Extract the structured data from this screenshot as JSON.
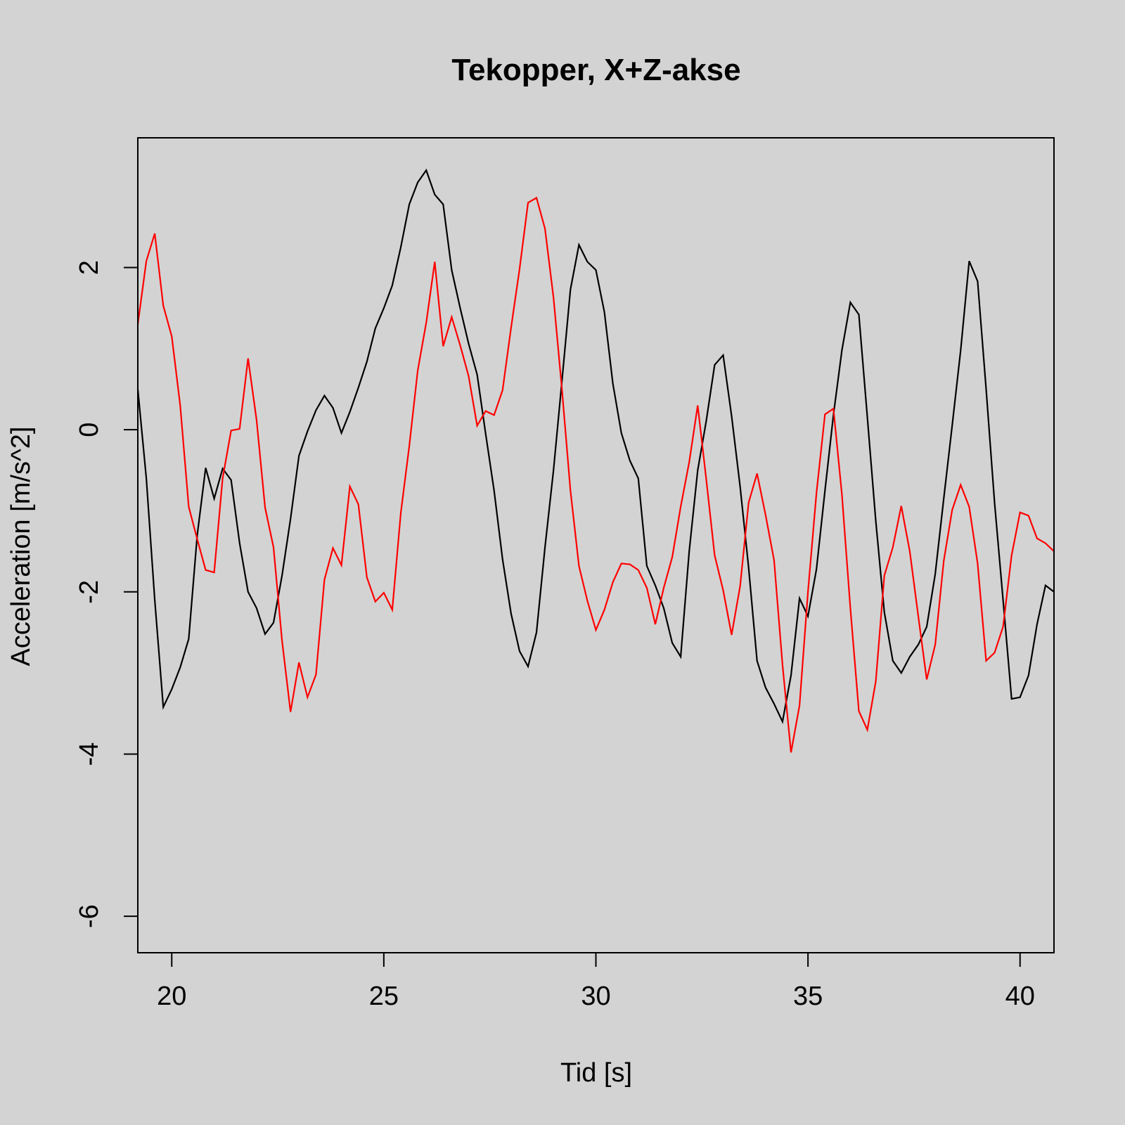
{
  "chart_data": {
    "type": "line",
    "title": "Tekopper, X+Z-akse",
    "xlabel": "Tid [s]",
    "ylabel": "Acceleration [m/s^2]",
    "xlim": [
      19.2,
      40.8
    ],
    "ylim": [
      -6.45,
      3.6
    ],
    "x_ticks": [
      20,
      25,
      30,
      35,
      40
    ],
    "y_ticks": [
      -6,
      -4,
      -2,
      0,
      2
    ],
    "grid": false,
    "background": "#d3d3d3",
    "series": [
      {
        "color": "#000000",
        "x": [
          19.2,
          19.4,
          19.6,
          19.8,
          20.0,
          20.2,
          20.4,
          20.6,
          20.8,
          21.0,
          21.2,
          21.4,
          21.6,
          21.8,
          22.0,
          22.2,
          22.4,
          22.6,
          22.8,
          23.0,
          23.2,
          23.4,
          23.6,
          23.8,
          24.0,
          24.2,
          24.4,
          24.6,
          24.8,
          25.0,
          25.2,
          25.4,
          25.6,
          25.8,
          26.0,
          26.2,
          26.4,
          26.6,
          26.8,
          27.0,
          27.2,
          27.4,
          27.6,
          27.8,
          28.0,
          28.2,
          28.4,
          28.6,
          28.8,
          29.0,
          29.2,
          29.4,
          29.6,
          29.8,
          30.0,
          30.2,
          30.4,
          30.6,
          30.8,
          31.0,
          31.2,
          31.4,
          31.6,
          31.8,
          32.0,
          32.2,
          32.4,
          32.6,
          32.8,
          33.0,
          33.2,
          33.4,
          33.6,
          33.8,
          34.0,
          34.2,
          34.4,
          34.6,
          34.8,
          35.0,
          35.2,
          35.4,
          35.6,
          35.8,
          36.0,
          36.2,
          36.4,
          36.6,
          36.8,
          37.0,
          37.2,
          37.4,
          37.6,
          37.8,
          38.0,
          38.2,
          38.4,
          38.6,
          38.8,
          39.0,
          39.2,
          39.4,
          39.6,
          39.8,
          40.0,
          40.2,
          40.4,
          40.6,
          40.8
        ],
        "y": [
          0.5,
          -0.6,
          -2.1,
          -3.42,
          -3.2,
          -2.93,
          -2.58,
          -1.3,
          -0.47,
          -0.85,
          -0.48,
          -0.62,
          -1.4,
          -2.0,
          -2.2,
          -2.52,
          -2.38,
          -1.8,
          -1.1,
          -0.32,
          -0.02,
          0.24,
          0.42,
          0.27,
          -0.04,
          0.22,
          0.52,
          0.84,
          1.25,
          1.5,
          1.78,
          2.25,
          2.78,
          3.05,
          3.2,
          2.9,
          2.78,
          1.97,
          1.5,
          1.06,
          0.68,
          -0.05,
          -0.75,
          -1.6,
          -2.27,
          -2.73,
          -2.92,
          -2.5,
          -1.45,
          -0.5,
          0.6,
          1.73,
          2.28,
          2.07,
          1.97,
          1.45,
          0.57,
          -0.04,
          -0.38,
          -0.6,
          -1.68,
          -1.92,
          -2.2,
          -2.63,
          -2.8,
          -1.5,
          -0.5,
          0.1,
          0.8,
          0.92,
          0.17,
          -0.7,
          -1.7,
          -2.85,
          -3.18,
          -3.38,
          -3.6,
          -3.03,
          -2.08,
          -2.3,
          -1.72,
          -0.75,
          0.18,
          0.98,
          1.57,
          1.42,
          0.15,
          -1.13,
          -2.25,
          -2.85,
          -3.0,
          -2.8,
          -2.65,
          -2.43,
          -1.78,
          -0.85,
          0.05,
          0.98,
          2.08,
          1.83,
          0.5,
          -0.9,
          -2.1,
          -3.32,
          -3.3,
          -3.03,
          -2.4,
          -1.92,
          -2.0
        ]
      },
      {
        "color": "#ff0000",
        "x": [
          19.2,
          19.4,
          19.6,
          19.8,
          20.0,
          20.2,
          20.4,
          20.6,
          20.8,
          21.0,
          21.2,
          21.4,
          21.6,
          21.8,
          22.0,
          22.2,
          22.4,
          22.6,
          22.8,
          23.0,
          23.2,
          23.4,
          23.6,
          23.8,
          24.0,
          24.2,
          24.4,
          24.6,
          24.8,
          25.0,
          25.2,
          25.4,
          25.6,
          25.8,
          26.0,
          26.2,
          26.4,
          26.6,
          26.8,
          27.0,
          27.2,
          27.4,
          27.6,
          27.8,
          28.0,
          28.2,
          28.4,
          28.6,
          28.8,
          29.0,
          29.2,
          29.4,
          29.6,
          29.8,
          30.0,
          30.2,
          30.4,
          30.6,
          30.8,
          31.0,
          31.2,
          31.4,
          31.6,
          31.8,
          32.0,
          32.2,
          32.4,
          32.6,
          32.8,
          33.0,
          33.2,
          33.4,
          33.6,
          33.8,
          34.0,
          34.2,
          34.4,
          34.6,
          34.8,
          35.0,
          35.2,
          35.4,
          35.6,
          35.8,
          36.0,
          36.2,
          36.4,
          36.6,
          36.8,
          37.0,
          37.2,
          37.4,
          37.6,
          37.8,
          38.0,
          38.2,
          38.4,
          38.6,
          38.8,
          39.0,
          39.2,
          39.4,
          39.6,
          39.8,
          40.0,
          40.2,
          40.4,
          40.6,
          40.8
        ],
        "y": [
          1.3,
          2.08,
          2.42,
          1.53,
          1.15,
          0.3,
          -0.95,
          -1.35,
          -1.73,
          -1.76,
          -0.6,
          -0.01,
          0.01,
          0.88,
          0.12,
          -0.96,
          -1.45,
          -2.6,
          -3.48,
          -2.87,
          -3.3,
          -3.02,
          -1.85,
          -1.46,
          -1.67,
          -0.7,
          -0.92,
          -1.82,
          -2.12,
          -2.01,
          -2.22,
          -1.03,
          -0.2,
          0.73,
          1.32,
          2.07,
          1.03,
          1.39,
          1.04,
          0.66,
          0.05,
          0.23,
          0.18,
          0.49,
          1.26,
          1.98,
          2.8,
          2.86,
          2.48,
          1.63,
          0.5,
          -0.75,
          -1.68,
          -2.11,
          -2.47,
          -2.22,
          -1.88,
          -1.65,
          -1.66,
          -1.73,
          -1.95,
          -2.4,
          -1.95,
          -1.57,
          -0.95,
          -0.4,
          0.3,
          -0.6,
          -1.55,
          -1.98,
          -2.53,
          -1.93,
          -0.9,
          -0.54,
          -1.05,
          -1.61,
          -2.9,
          -3.98,
          -3.4,
          -2.0,
          -0.78,
          0.19,
          0.26,
          -0.8,
          -2.2,
          -3.47,
          -3.7,
          -3.1,
          -1.8,
          -1.45,
          -0.94,
          -1.5,
          -2.3,
          -3.08,
          -2.65,
          -1.62,
          -0.99,
          -0.68,
          -0.95,
          -1.65,
          -2.85,
          -2.75,
          -2.43,
          -1.55,
          -1.02,
          -1.06,
          -1.34,
          -1.4,
          -1.5
        ]
      }
    ]
  }
}
